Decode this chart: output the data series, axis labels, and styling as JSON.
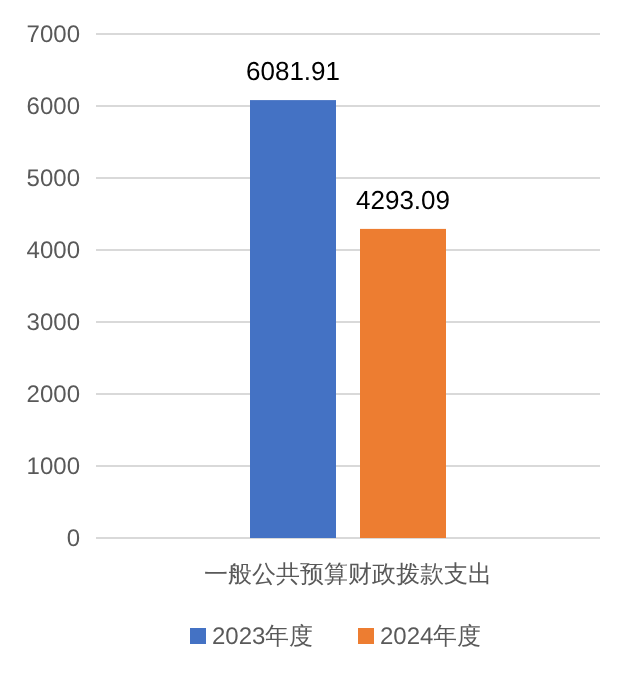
{
  "chart_data": {
    "type": "bar",
    "categories": [
      "一般公共预算财政拨款支出"
    ],
    "series": [
      {
        "name": "2023年度",
        "color": "#4472c4",
        "values": [
          6081.91
        ]
      },
      {
        "name": "2024年度",
        "color": "#ed7d31",
        "values": [
          4293.09
        ]
      }
    ],
    "ylim": [
      0,
      7000
    ],
    "yticks": [
      0,
      1000,
      2000,
      3000,
      4000,
      5000,
      6000,
      7000
    ],
    "grid": "y",
    "legend": "bottom",
    "data_labels": true
  }
}
